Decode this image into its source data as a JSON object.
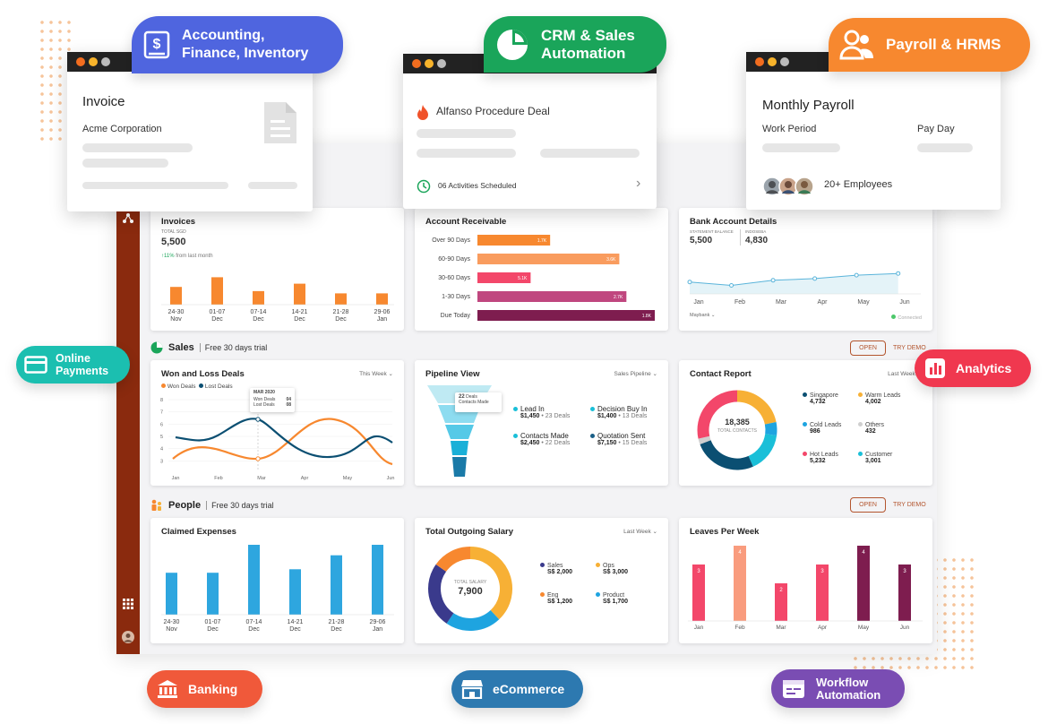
{
  "modules": {
    "accounting": "Accounting,\nFinance, Inventory",
    "crm": "CRM & Sales\nAutomation",
    "payroll": "Payroll & HRMS",
    "online_payments": "Online\nPayments",
    "analytics": "Analytics",
    "banking": "Banking",
    "ecommerce": "eCommerce",
    "workflow": "Workflow\nAutomation"
  },
  "invoice_window": {
    "title": "Invoice",
    "company": "Acme Corporation"
  },
  "deal_window": {
    "title": "Alfanso Procedure Deal",
    "activities": "06 Activities Scheduled"
  },
  "payroll_window": {
    "title": "Monthly Payroll",
    "work_period": "Work Period",
    "pay_day": "Pay Day",
    "employees": "20+ Employees"
  },
  "invoices_card": {
    "title": "Invoices",
    "total_label": "TOTAL SGD",
    "total": "5,500",
    "trend": "↑11%",
    "trend_note": "from last month",
    "bars": [
      {
        "d": "24-30",
        "m": "Nov",
        "v": 0.55
      },
      {
        "d": "01-07",
        "m": "Dec",
        "v": 0.85
      },
      {
        "d": "07-14",
        "m": "Dec",
        "v": 0.42
      },
      {
        "d": "14-21",
        "m": "Dec",
        "v": 0.65
      },
      {
        "d": "21-28",
        "m": "Dec",
        "v": 0.35
      },
      {
        "d": "29-06",
        "m": "Jan",
        "v": 0.35
      }
    ]
  },
  "receivable_card": {
    "title": "Account Receivable",
    "rows": [
      {
        "label": "Over 90 Days",
        "value": "1.7K",
        "frac": 0.41,
        "color": "#f7882f"
      },
      {
        "label": "60-90 Days",
        "value": "3.6K",
        "frac": 0.8,
        "color": "#f99c5e"
      },
      {
        "label": "30-60 Days",
        "value": "5.1K",
        "frac": 0.3,
        "color": "#f3476a"
      },
      {
        "label": "1-30 Days",
        "value": "2.7K",
        "frac": 0.84,
        "color": "#c0477f"
      },
      {
        "label": "Due Today",
        "value": "1.8K",
        "frac": 1.0,
        "color": "#7e1d4f"
      }
    ]
  },
  "bank_card": {
    "title": "Bank Account Details",
    "statement_label": "STATEMENT BALANCE",
    "statement": "5,500",
    "indoseba_label": "INDOSEBA",
    "indoseba": "4,830",
    "months": [
      "Jan",
      "Feb",
      "Mar",
      "Apr",
      "May",
      "Jun"
    ],
    "values": [
      0.35,
      0.45,
      0.25,
      0.55,
      0.4,
      0.6,
      0.45,
      0.7,
      0.55,
      0.75,
      0.6,
      0.8
    ],
    "dropdown": "Maybank",
    "status": "Connected"
  },
  "sales_section": {
    "label": "Sales",
    "trial": "Free 30 days trial",
    "open": "OPEN",
    "try": "TRY DEMO"
  },
  "people_section": {
    "label": "People",
    "trial": "Free 30 days trial",
    "open": "OPEN",
    "try": "TRY DEMO"
  },
  "won_loss": {
    "title": "Won and Loss Deals",
    "filter": "This Week",
    "legend_won": "Won Deals",
    "legend_lost": "Lost Deals",
    "tooltip": {
      "date": "MAR 2020",
      "won_label": "Won Deals",
      "won": "04",
      "lost_label": "Lost Deals",
      "lost": "08"
    },
    "yticks": [
      "8",
      "7",
      "6",
      "5",
      "4",
      "3"
    ],
    "xticks": [
      "Jan",
      "Feb",
      "Mar",
      "Apr",
      "May",
      "Jun"
    ]
  },
  "pipeline": {
    "title": "Pipeline View",
    "filter": "Sales Pipeline",
    "tooltip_n": "22",
    "tooltip_l": "Deals",
    "tooltip_s": "Contacts Made",
    "items": [
      {
        "name": "Lead In",
        "amount": "$1,450",
        "deals": "23 Deals",
        "color": "#1abfd8"
      },
      {
        "name": "Decision Buy In",
        "amount": "$1,400",
        "deals": "13 Deals",
        "color": "#1abfd8"
      },
      {
        "name": "Contacts Made",
        "amount": "$2,450",
        "deals": "22 Deals",
        "color": "#1abfd8"
      },
      {
        "name": "Quotation Sent",
        "amount": "$7,150",
        "deals": "15 Deals",
        "color": "#1a5f87"
      }
    ]
  },
  "contact_report": {
    "title": "Contact Report",
    "filter": "Last Week",
    "total": "18,385",
    "total_label": "TOTAL CONTACTS",
    "items": [
      {
        "name": "Singapore",
        "v": "4,732",
        "color": "#0b4f72"
      },
      {
        "name": "Warm Leads",
        "v": "4,002",
        "color": "#f7b035"
      },
      {
        "name": "Cold Leads",
        "v": "986",
        "color": "#1ea4e0"
      },
      {
        "name": "Others",
        "v": "432",
        "color": "#cfcfcf"
      },
      {
        "name": "Hot Leads",
        "v": "5,232",
        "color": "#f3476a"
      },
      {
        "name": "Customer",
        "v": "3,001",
        "color": "#1abfd8"
      }
    ]
  },
  "claimed": {
    "title": "Claimed Expenses",
    "bars": [
      {
        "d": "24-30",
        "m": "Nov",
        "v": 0.6
      },
      {
        "d": "01-07",
        "m": "Dec",
        "v": 0.6
      },
      {
        "d": "07-14",
        "m": "Dec",
        "v": 1.0
      },
      {
        "d": "14-21",
        "m": "Dec",
        "v": 0.65
      },
      {
        "d": "21-28",
        "m": "Dec",
        "v": 0.85
      },
      {
        "d": "29-06",
        "m": "Jan",
        "v": 1.0
      }
    ]
  },
  "salary": {
    "title": "Total Outgoing Salary",
    "filter": "Last Week",
    "total_label": "TOTAL SALARY",
    "total": "7,900",
    "items": [
      {
        "name": "Sales",
        "v": "S$ 2,000",
        "color": "#3a3a8c"
      },
      {
        "name": "Ops",
        "v": "S$ 3,000",
        "color": "#f7b035"
      },
      {
        "name": "Eng",
        "v": "S$ 1,200",
        "color": "#f7882f"
      },
      {
        "name": "Product",
        "v": "S$ 1,700",
        "color": "#1ea4e0"
      }
    ]
  },
  "leaves": {
    "title": "Leaves Per Week",
    "bars": [
      {
        "m": "Jan",
        "v": 3,
        "color": "#f3476a"
      },
      {
        "m": "Feb",
        "v": 4,
        "color": "#f99c7e"
      },
      {
        "m": "Mar",
        "v": 2,
        "color": "#f3476a"
      },
      {
        "m": "Apr",
        "v": 3,
        "color": "#f3476a"
      },
      {
        "m": "May",
        "v": 4,
        "color": "#7e1d4f"
      },
      {
        "m": "Jun",
        "v": 3,
        "color": "#7e1d4f"
      }
    ]
  }
}
